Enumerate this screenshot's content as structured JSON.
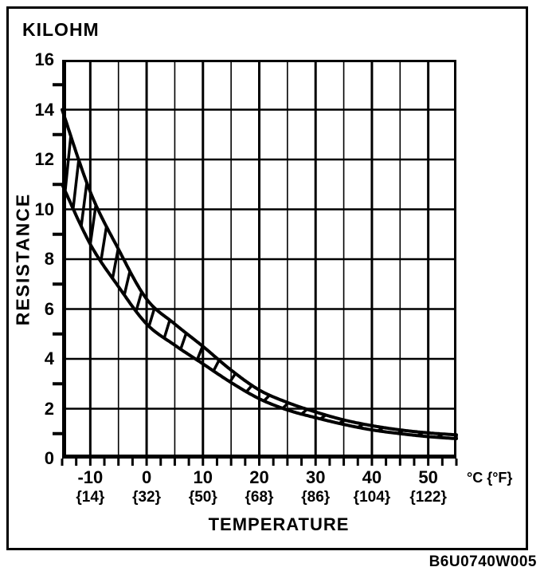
{
  "figure": {
    "y_unit_label": "KILOHM",
    "y_axis_label": "RESISTANCE",
    "x_axis_label": "TEMPERATURE",
    "x_unit_label": "°C {°F}",
    "figure_code": "B6U0740W005"
  },
  "colors": {
    "ink": "#000000",
    "paper": "#ffffff"
  },
  "chart_data": {
    "type": "area",
    "subtype": "tolerance-band-with-hatching",
    "title": "",
    "xlabel": "TEMPERATURE",
    "ylabel": "RESISTANCE",
    "x_unit": "°C {°F}",
    "y_unit": "KILOHM",
    "xlim": [
      -15,
      55
    ],
    "ylim": [
      0,
      16
    ],
    "grid": "on",
    "grid_x_step_c": 5,
    "grid_y_step_kilohm": 2,
    "x_minor_tick_step_c": 2.5,
    "y_minor_tick_step_kilohm": 2,
    "y_ticks": [
      16,
      14,
      12,
      10,
      8,
      6,
      4,
      2,
      0
    ],
    "x_major_ticks": [
      -10,
      0,
      10,
      20,
      30,
      40,
      50
    ],
    "x_tick_labels_c": [
      "-10",
      "0",
      "10",
      "20",
      "30",
      "40",
      "50"
    ],
    "x_tick_labels_f": [
      "{14}",
      "{32}",
      "{50}",
      "{68}",
      "{86}",
      "{104}",
      "{122}"
    ],
    "x": [
      -15,
      -10,
      -5,
      0,
      5,
      10,
      15,
      20,
      25,
      30,
      35,
      40,
      45,
      50,
      55
    ],
    "series": [
      {
        "name": "upper-limit",
        "values": [
          14.0,
          10.7,
          8.4,
          6.4,
          5.4,
          4.5,
          3.55,
          2.75,
          2.25,
          1.87,
          1.55,
          1.32,
          1.15,
          1.03,
          0.95
        ]
      },
      {
        "name": "lower-limit",
        "values": [
          11.0,
          8.6,
          6.9,
          5.4,
          4.55,
          3.8,
          3.05,
          2.4,
          1.95,
          1.64,
          1.37,
          1.15,
          1.0,
          0.88,
          0.8
        ]
      }
    ],
    "band_fill": "diagonal-hatch-rungs",
    "legend": "none"
  }
}
